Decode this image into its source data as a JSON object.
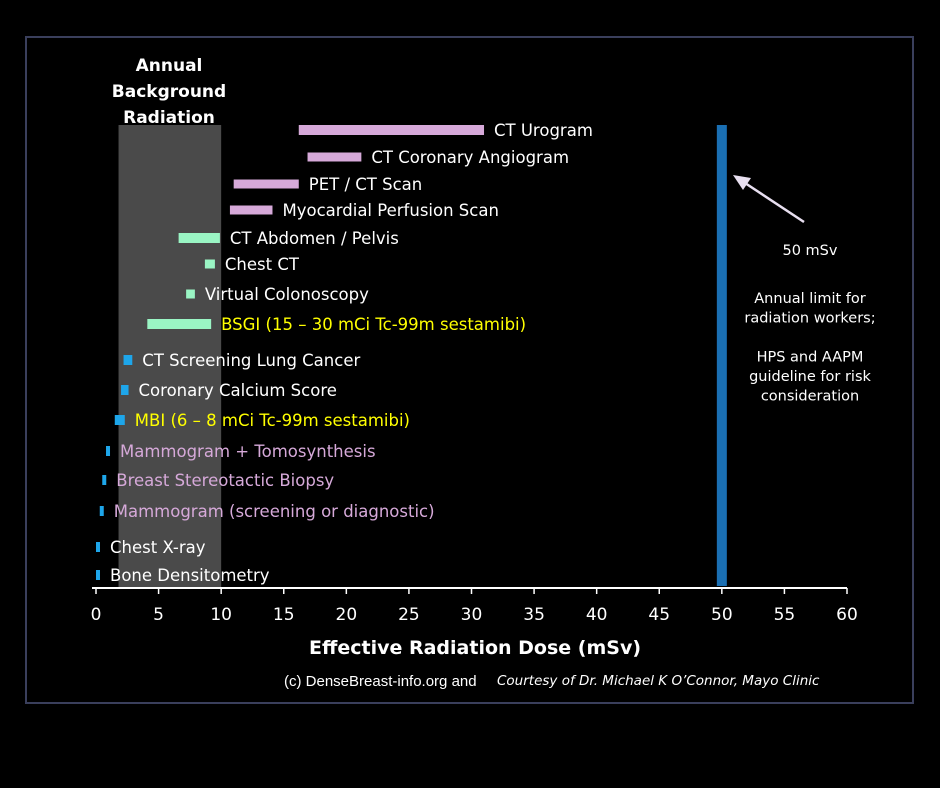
{
  "chart_data": {
    "type": "bar",
    "orientation": "horizontal-range",
    "xlabel": "Effective Radiation Dose (mSv)",
    "xlim": [
      0,
      60
    ],
    "xticks": [
      0,
      5,
      10,
      15,
      20,
      25,
      30,
      35,
      40,
      45,
      50,
      55,
      60
    ],
    "grid": false,
    "background_band": {
      "label_lines": [
        "Annual",
        "Background",
        "Radiation"
      ],
      "range": [
        1.8,
        10.0
      ]
    },
    "reference_line": {
      "x": 50,
      "label": "50 mSv",
      "note_lines": [
        "Annual limit for",
        "radiation workers;",
        "",
        "HPS and AAPM",
        "guideline for risk",
        "consideration"
      ]
    },
    "series": [
      {
        "label": "CT Urogram",
        "range": [
          16.2,
          31.0
        ],
        "color": "#d6a9d9",
        "label_color": "#ffffff"
      },
      {
        "label": "CT Coronary Angiogram",
        "range": [
          16.9,
          21.2
        ],
        "color": "#d6a9d9",
        "label_color": "#ffffff"
      },
      {
        "label": "PET / CT Scan",
        "range": [
          11.0,
          16.2
        ],
        "color": "#d6a9d9",
        "label_color": "#ffffff"
      },
      {
        "label": "Myocardial Perfusion Scan",
        "range": [
          10.7,
          14.1
        ],
        "color": "#d6a9d9",
        "label_color": "#ffffff"
      },
      {
        "label": "CT Abdomen / Pelvis",
        "range": [
          6.6,
          9.9
        ],
        "color": "#9af5c4",
        "label_color": "#ffffff"
      },
      {
        "label": "Chest CT",
        "range": [
          8.7,
          9.5
        ],
        "color": "#9af5c4",
        "label_color": "#ffffff"
      },
      {
        "label": "Virtual Colonoscopy",
        "range": [
          7.2,
          7.9
        ],
        "color": "#9af5c4",
        "label_color": "#ffffff"
      },
      {
        "label": "BSGI (15 – 30 mCi Tc-99m sestamibi)",
        "range": [
          4.1,
          9.2
        ],
        "color": "#9af5c4",
        "label_color": "#ffff00"
      },
      {
        "label": "CT Screening Lung Cancer",
        "range": [
          2.2,
          2.9
        ],
        "color": "#1ea6ea",
        "label_color": "#ffffff"
      },
      {
        "label": "Coronary Calcium Score",
        "range": [
          2.0,
          2.6
        ],
        "color": "#1ea6ea",
        "label_color": "#ffffff"
      },
      {
        "label": "MBI (6 – 8 mCi Tc-99m sestamibi)",
        "range": [
          1.5,
          2.3
        ],
        "color": "#1ea6ea",
        "label_color": "#ffff00"
      },
      {
        "label": "Mammogram + Tomosynthesis",
        "range": [
          0.8,
          1.1
        ],
        "color": "#1ea6ea",
        "label_color": "#d6a9d9"
      },
      {
        "label": "Breast Stereotactic Biopsy",
        "range": [
          0.5,
          0.8
        ],
        "color": "#1ea6ea",
        "label_color": "#d6a9d9"
      },
      {
        "label": "Mammogram (screening or diagnostic)",
        "range": [
          0.3,
          0.6
        ],
        "color": "#1ea6ea",
        "label_color": "#d6a9d9"
      },
      {
        "label": "Chest X-ray",
        "range": [
          0.0,
          0.3
        ],
        "color": "#1ea6ea",
        "label_color": "#ffffff"
      },
      {
        "label": "Bone Densitometry",
        "range": [
          0.0,
          0.2
        ],
        "color": "#1ea6ea",
        "label_color": "#ffffff"
      }
    ],
    "colors": {
      "axis": "#ffffff",
      "band": "#4a4a4a",
      "reference_line": "#1a6fb3",
      "arrow": "#e8dff0"
    }
  },
  "credits": {
    "main": "(c) DenseBreast-info.org and",
    "courtesy": "Courtesy of Dr. Michael K O’Connor, Mayo Clinic"
  }
}
